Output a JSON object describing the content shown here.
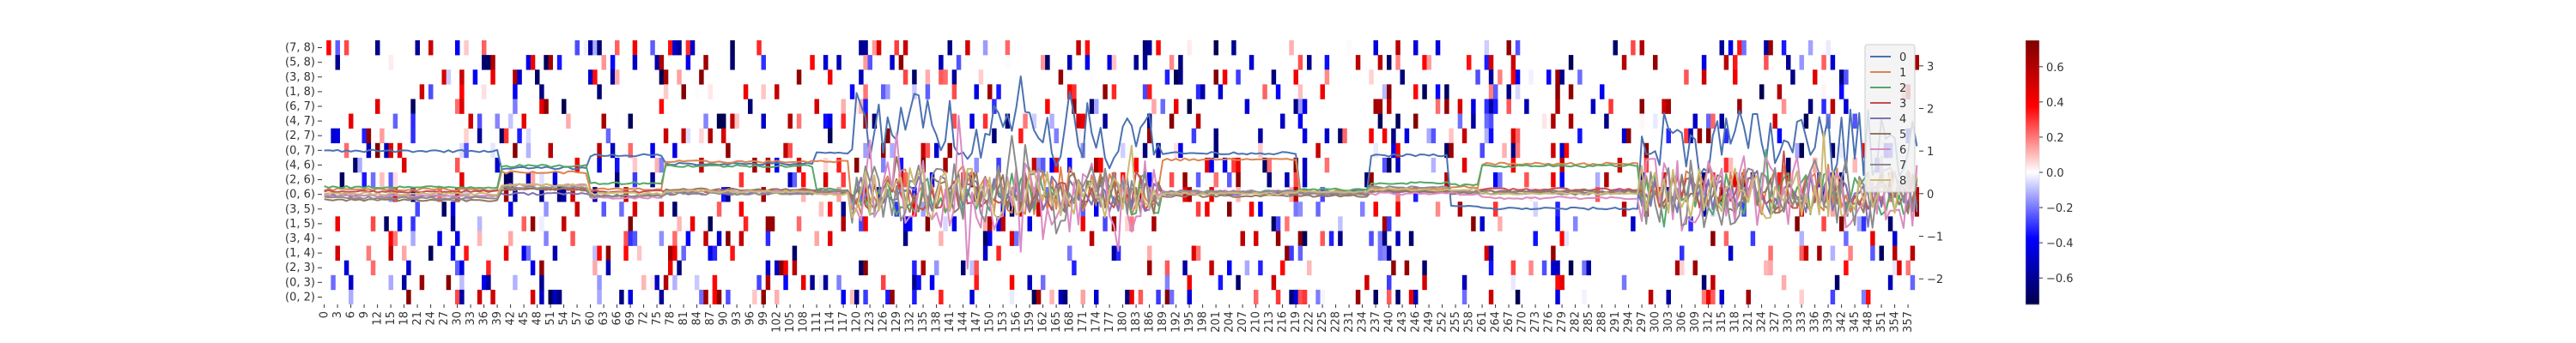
{
  "chart_data": [
    {
      "type": "heatmap",
      "title": "",
      "xlabel": "",
      "ylabel": "",
      "x_tick_labels": [
        "0",
        "3",
        "6",
        "9",
        "12",
        "15",
        "18",
        "21",
        "24",
        "27",
        "30",
        "33",
        "36",
        "39",
        "42",
        "45",
        "48",
        "51",
        "54",
        "57",
        "60",
        "63",
        "66",
        "69",
        "72",
        "75",
        "78",
        "81",
        "84",
        "87",
        "90",
        "93",
        "96",
        "99",
        "102",
        "105",
        "108",
        "111",
        "114",
        "117",
        "120",
        "123",
        "126",
        "129",
        "132",
        "135",
        "138",
        "141",
        "144",
        "147",
        "150",
        "153",
        "156",
        "159",
        "162",
        "165",
        "168",
        "171",
        "174",
        "177",
        "180",
        "183",
        "186",
        "189",
        "192",
        "195",
        "198",
        "201",
        "204",
        "207",
        "210",
        "213",
        "216",
        "219",
        "222",
        "225",
        "228",
        "231",
        "234",
        "237",
        "240",
        "243",
        "246",
        "249",
        "252",
        "255",
        "258",
        "261",
        "264",
        "267",
        "270",
        "273",
        "276",
        "279",
        "282",
        "285",
        "288",
        "291",
        "294",
        "297",
        "300",
        "303",
        "306",
        "309",
        "312",
        "315",
        "318",
        "321",
        "324",
        "327",
        "330",
        "333",
        "336",
        "339",
        "342",
        "345",
        "348",
        "351",
        "354",
        "357"
      ],
      "y_tick_labels": [
        "(7, 8)",
        "(5, 8)",
        "(3, 8)",
        "(1, 8)",
        "(6, 7)",
        "(4, 7)",
        "(2, 7)",
        "(0, 7)",
        "(4, 6)",
        "(2, 6)",
        "(0, 6)",
        "(3, 5)",
        "(1, 5)",
        "(3, 4)",
        "(1, 4)",
        "(2, 3)",
        "(0, 3)",
        "(0, 2)"
      ],
      "n_columns": 360,
      "n_rows": 18,
      "colorbar": {
        "cmap": "seismic",
        "vmin": -0.75,
        "vmax": 0.75,
        "ticks": [
          "0.6",
          "0.4",
          "0.2",
          "0.0",
          "−0.2",
          "−0.4",
          "−0.6"
        ],
        "tick_values": [
          0.6,
          0.4,
          0.2,
          0.0,
          -0.2,
          -0.4,
          -0.6
        ]
      },
      "cell_density": 0.24,
      "cell_value_range": [
        -0.75,
        0.75
      ]
    },
    {
      "type": "line",
      "title": "",
      "xlabel": "",
      "ylabel": "",
      "ylim": [
        -2.6,
        3.6
      ],
      "y_ticks": [
        "3",
        "2",
        "1",
        "0",
        "−1",
        "−2"
      ],
      "y_tick_values": [
        3,
        2,
        1,
        0,
        -1,
        -2
      ],
      "x_range": [
        0,
        359
      ],
      "legend_position": "upper-right",
      "series": [
        {
          "name": "0",
          "color": "#4c72b0"
        },
        {
          "name": "1",
          "color": "#dd8452"
        },
        {
          "name": "2",
          "color": "#55a868"
        },
        {
          "name": "3",
          "color": "#c44e52"
        },
        {
          "name": "4",
          "color": "#8172b3"
        },
        {
          "name": "5",
          "color": "#937860"
        },
        {
          "name": "6",
          "color": "#da8bc3"
        },
        {
          "name": "7",
          "color": "#8c8c8c"
        },
        {
          "name": "8",
          "color": "#ccb974"
        }
      ],
      "segments": [
        {
          "range": [
            0,
            39
          ],
          "levels": [
            1.0,
            0.1,
            0.15,
            0.05,
            -0.05,
            -0.15,
            -0.05,
            -0.1,
            0.0
          ]
        },
        {
          "range": [
            40,
            59
          ],
          "levels": [
            0.6,
            0.5,
            0.65,
            0.1,
            0.0,
            0.1,
            0.2,
            0.15,
            0.2
          ]
        },
        {
          "range": [
            60,
            76
          ],
          "levels": [
            0.9,
            0.1,
            0.25,
            0.05,
            -0.05,
            -0.05,
            -0.1,
            -0.05,
            0.0
          ]
        },
        {
          "range": [
            77,
            110
          ],
          "levels": [
            0.7,
            0.75,
            0.65,
            0.05,
            0.0,
            0.1,
            0.05,
            0.0,
            0.05
          ]
        },
        {
          "range": [
            111,
            118
          ],
          "levels": [
            0.95,
            0.75,
            0.1,
            0.05,
            0.0,
            0.05,
            0.0,
            0.05,
            0.0
          ]
        },
        {
          "range": [
            119,
            188
          ],
          "noisy": true,
          "amplitude": [
            0.8,
            0.6,
            0.5,
            0.4,
            0.45,
            0.5,
            0.9,
            0.7,
            0.6
          ],
          "levels": [
            1.6,
            0.1,
            0.0,
            0.0,
            0.0,
            0.0,
            0.0,
            0.0,
            0.0
          ]
        },
        {
          "range": [
            189,
            219
          ],
          "levels": [
            0.95,
            0.8,
            0.05,
            0.0,
            0.0,
            -0.05,
            0.05,
            0.05,
            0.0
          ]
        },
        {
          "range": [
            220,
            235
          ],
          "levels": [
            0.05,
            0.05,
            0.1,
            0.0,
            0.0,
            -0.05,
            0.0,
            0.0,
            0.05
          ]
        },
        {
          "range": [
            236,
            253
          ],
          "levels": [
            0.9,
            0.1,
            0.25,
            0.05,
            0.05,
            0.05,
            0.0,
            0.15,
            0.1
          ]
        },
        {
          "range": [
            254,
            260
          ],
          "levels": [
            -0.3,
            0.15,
            0.2,
            0.05,
            0.05,
            0.0,
            0.0,
            0.05,
            0.1
          ]
        },
        {
          "range": [
            261,
            296
          ],
          "levels": [
            -0.35,
            0.7,
            0.65,
            0.1,
            0.05,
            0.05,
            -0.1,
            0.0,
            0.0
          ]
        },
        {
          "range": [
            297,
            359
          ],
          "noisy": true,
          "amplitude": [
            0.8,
            0.6,
            0.5,
            0.4,
            0.45,
            0.5,
            0.9,
            0.8,
            0.6
          ],
          "levels": [
            1.2,
            0.1,
            0.0,
            0.0,
            0.0,
            0.0,
            0.0,
            0.0,
            0.0
          ]
        }
      ]
    }
  ]
}
